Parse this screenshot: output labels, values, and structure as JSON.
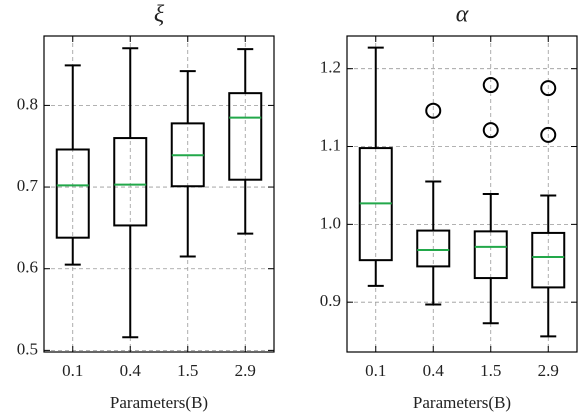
{
  "chart_data": [
    {
      "type": "box",
      "title": "ξ",
      "xlabel": "Parameters(B)",
      "categories": [
        "0.1",
        "0.4",
        "1.5",
        "2.9"
      ],
      "box_color": "#000000",
      "median_color": "#22a84a",
      "grid": true,
      "ylim": [
        0.498,
        0.885
      ],
      "yticks": [
        0.5,
        0.6,
        0.7,
        0.8
      ],
      "boxes": [
        {
          "whislo": 0.605,
          "q1": 0.638,
          "med": 0.702,
          "q3": 0.746,
          "whishi": 0.849,
          "fliers": []
        },
        {
          "whislo": 0.516,
          "q1": 0.653,
          "med": 0.703,
          "q3": 0.76,
          "whishi": 0.87,
          "fliers": []
        },
        {
          "whislo": 0.615,
          "q1": 0.701,
          "med": 0.739,
          "q3": 0.778,
          "whishi": 0.842,
          "fliers": []
        },
        {
          "whislo": 0.643,
          "q1": 0.709,
          "med": 0.785,
          "q3": 0.815,
          "whishi": 0.869,
          "fliers": []
        }
      ]
    },
    {
      "type": "box",
      "title": "α",
      "xlabel": "Parameters(B)",
      "categories": [
        "0.1",
        "0.4",
        "1.5",
        "2.9"
      ],
      "box_color": "#000000",
      "median_color": "#22a84a",
      "grid": true,
      "ylim": [
        0.836,
        1.242
      ],
      "yticks": [
        0.9,
        {
          "value": 1,
          "label": "1.0"
        },
        1.1,
        1.2
      ],
      "boxes": [
        {
          "whislo": 0.921,
          "q1": 0.954,
          "med": 1.027,
          "q3": 1.098,
          "whishi": 1.227,
          "fliers": []
        },
        {
          "whislo": 0.897,
          "q1": 0.946,
          "med": 0.967,
          "q3": 0.992,
          "whishi": 1.055,
          "fliers": [
            1.146
          ]
        },
        {
          "whislo": 0.873,
          "q1": 0.931,
          "med": 0.971,
          "q3": 0.991,
          "whishi": 1.039,
          "fliers": [
            1.179,
            1.121
          ]
        },
        {
          "whislo": 0.856,
          "q1": 0.919,
          "med": 0.958,
          "q3": 0.989,
          "whishi": 1.037,
          "fliers": [
            1.175,
            1.115
          ]
        }
      ]
    }
  ]
}
